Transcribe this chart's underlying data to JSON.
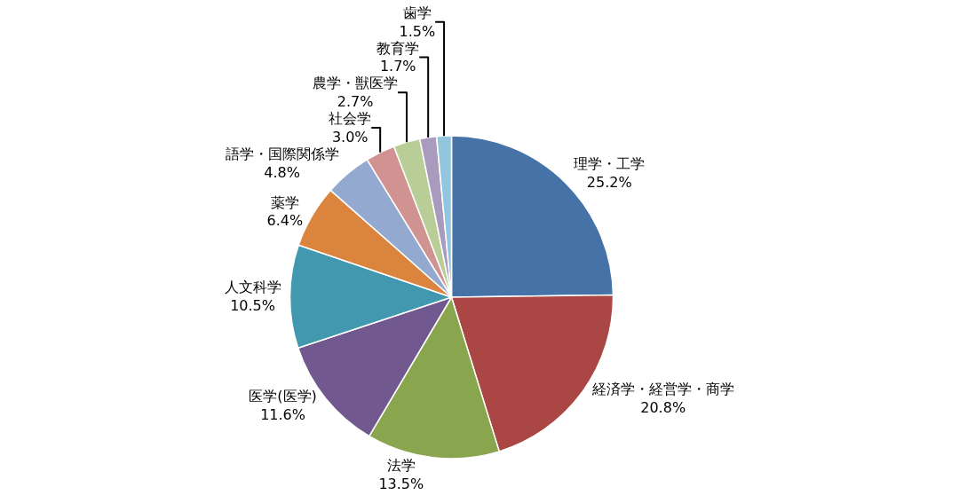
{
  "chart_data": {
    "type": "pie",
    "categories": [
      "理学・工学",
      "経済学・経営学・商学",
      "法学",
      "医学(医学)",
      "人文科学",
      "薬学",
      "語学・国際関係学",
      "社会学",
      "農学・獣医学",
      "教育学",
      "歯学"
    ],
    "values": [
      25.2,
      20.8,
      13.5,
      11.6,
      10.5,
      6.4,
      4.8,
      3.0,
      2.7,
      1.7,
      1.5
    ],
    "value_labels": [
      "25.2%",
      "20.8%",
      "13.5%",
      "11.6%",
      "10.5%",
      "6.4%",
      "4.8%",
      "3.0%",
      "2.7%",
      "1.7%",
      "1.5%"
    ],
    "colors": [
      "#4572a7",
      "#aa4643",
      "#89a54e",
      "#71588f",
      "#4198af",
      "#db843d",
      "#93a9cf",
      "#d19392",
      "#b9cd96",
      "#a99bbd",
      "#92c5de"
    ],
    "legend": false
  }
}
